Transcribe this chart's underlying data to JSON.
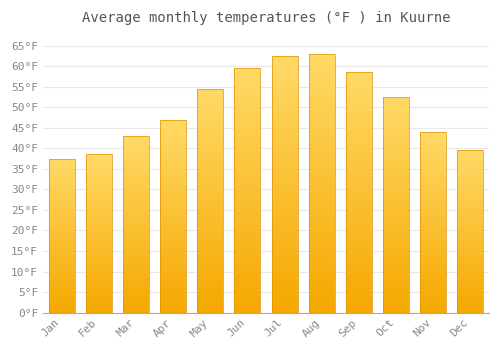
{
  "months": [
    "Jan",
    "Feb",
    "Mar",
    "Apr",
    "May",
    "Jun",
    "Jul",
    "Aug",
    "Sep",
    "Oct",
    "Nov",
    "Dec"
  ],
  "values": [
    37.5,
    38.5,
    43.0,
    47.0,
    54.5,
    59.5,
    62.5,
    63.0,
    58.5,
    52.5,
    44.0,
    39.5
  ],
  "bar_color_bottom": "#F5A800",
  "bar_color_top": "#FFD966",
  "bar_edge_color": "#E09000",
  "title": "Average monthly temperatures (°F ) in Kuurne",
  "ylim": [
    0,
    68
  ],
  "yticks": [
    0,
    5,
    10,
    15,
    20,
    25,
    30,
    35,
    40,
    45,
    50,
    55,
    60,
    65
  ],
  "background_color": "#FFFFFF",
  "grid_color": "#E8E8E8",
  "title_fontsize": 10,
  "tick_fontsize": 8,
  "font_family": "monospace"
}
